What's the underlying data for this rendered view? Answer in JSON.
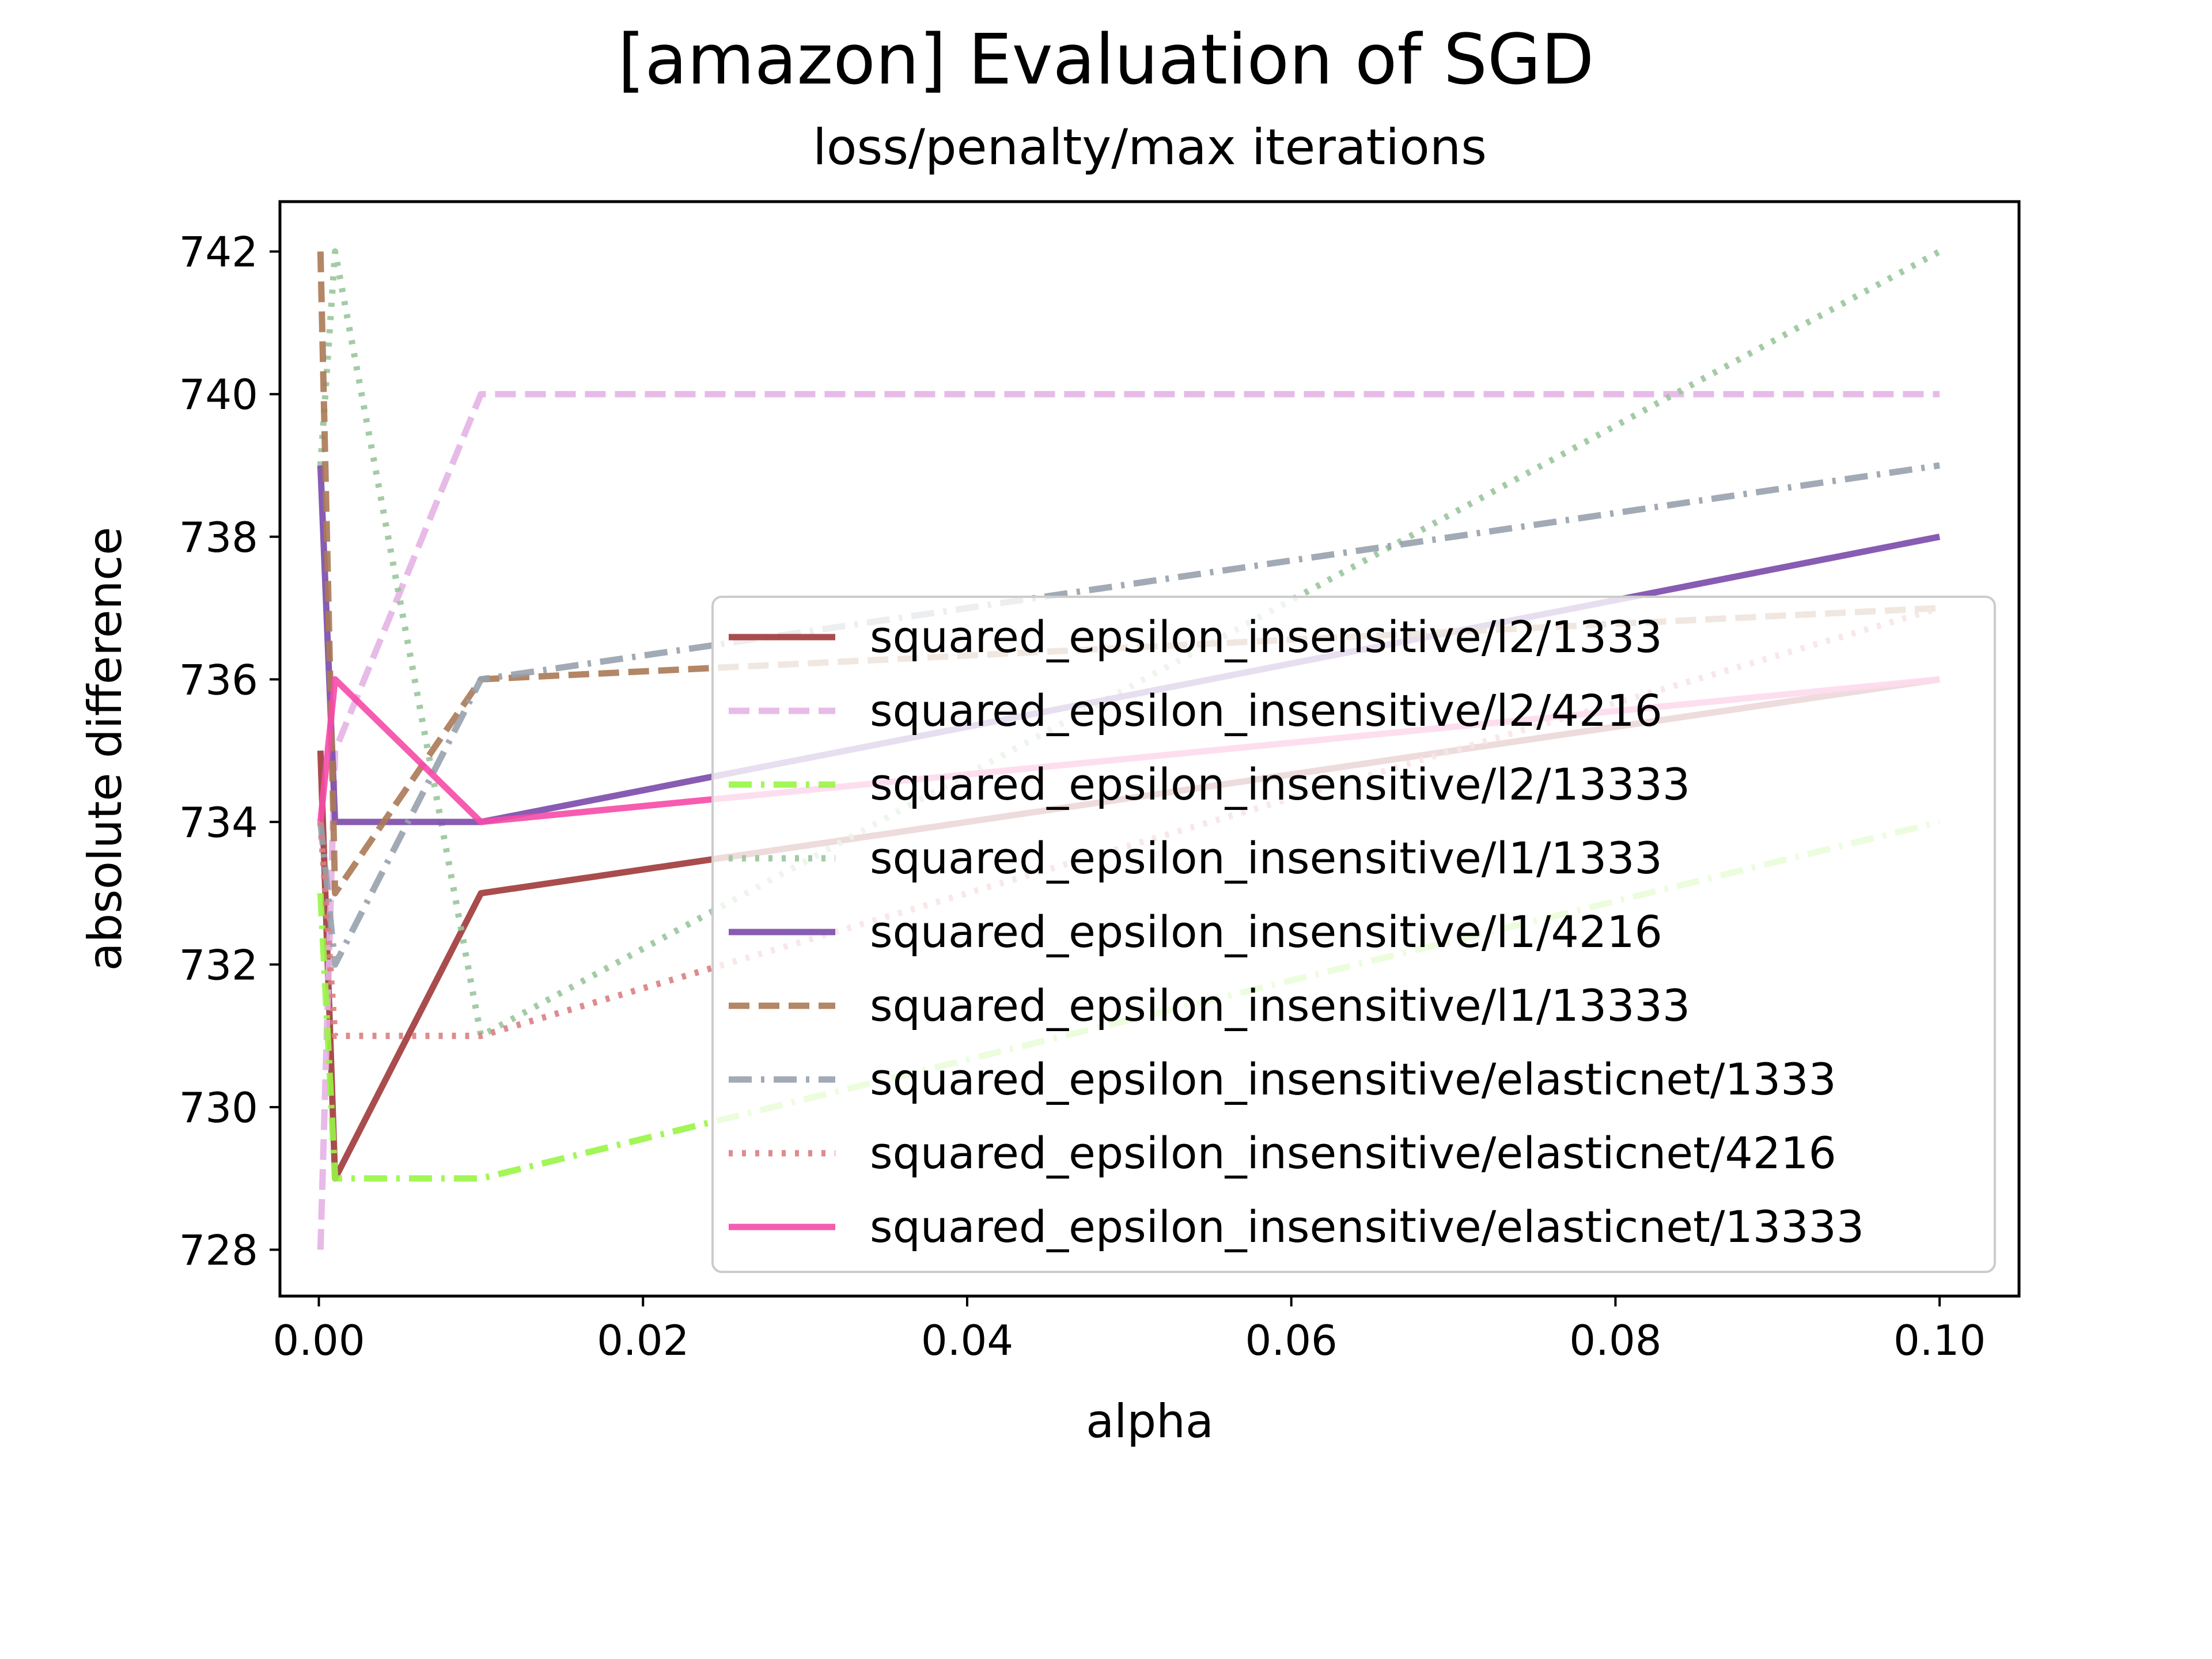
{
  "chart_data": {
    "type": "line",
    "title": "[amazon] Evaluation of SGD",
    "subtitle": "loss/penalty/max iterations",
    "xlabel": "alpha",
    "ylabel": "absolute difference",
    "xlim": [
      -0.0024,
      0.1049
    ],
    "ylim": [
      727.35,
      742.7
    ],
    "xticks": [
      0.0,
      0.02,
      0.04,
      0.06,
      0.08,
      0.1
    ],
    "xtick_labels": [
      "0.00",
      "0.02",
      "0.04",
      "0.06",
      "0.08",
      "0.10"
    ],
    "yticks": [
      728,
      730,
      732,
      734,
      736,
      738,
      740,
      742
    ],
    "ytick_labels": [
      "728",
      "730",
      "732",
      "734",
      "736",
      "738",
      "740",
      "742"
    ],
    "grid": false,
    "legend_position": "lower-right",
    "x": [
      0.0001,
      0.001,
      0.01,
      0.1
    ],
    "series": [
      {
        "name": "squared_epsilon_insensitive/l2/1333",
        "color": "#a0393a",
        "dash": "solid",
        "values": [
          735,
          729,
          733,
          736
        ]
      },
      {
        "name": "squared_epsilon_insensitive/l2/4216",
        "color": "#e4b2e4",
        "dash": "dashed",
        "values": [
          728,
          735,
          740,
          740
        ]
      },
      {
        "name": "squared_epsilon_insensitive/l2/13333",
        "color": "#98f545",
        "dash": "dashdot",
        "values": [
          733,
          729,
          729,
          734
        ]
      },
      {
        "name": "squared_epsilon_insensitive/l1/1333",
        "color": "#99c59b",
        "dash": "dotted",
        "values": [
          739,
          742,
          731,
          742
        ]
      },
      {
        "name": "squared_epsilon_insensitive/l1/4216",
        "color": "#7a4aaa",
        "dash": "solid",
        "values": [
          739,
          734,
          734,
          738
        ]
      },
      {
        "name": "squared_epsilon_insensitive/l1/13333",
        "color": "#ab7955",
        "dash": "dashed",
        "values": [
          742,
          733,
          736,
          737
        ]
      },
      {
        "name": "squared_epsilon_insensitive/elasticnet/1333",
        "color": "#97a1ad",
        "dash": "dashdot",
        "values": [
          734,
          732,
          736,
          739
        ]
      },
      {
        "name": "squared_epsilon_insensitive/elasticnet/4216",
        "color": "#d97f81",
        "dash": "dotted",
        "values": [
          734,
          731,
          731,
          737
        ]
      },
      {
        "name": "squared_epsilon_insensitive/elasticnet/13333",
        "color": "#f54aa7",
        "dash": "solid",
        "values": [
          734,
          736,
          734,
          736
        ]
      }
    ]
  }
}
